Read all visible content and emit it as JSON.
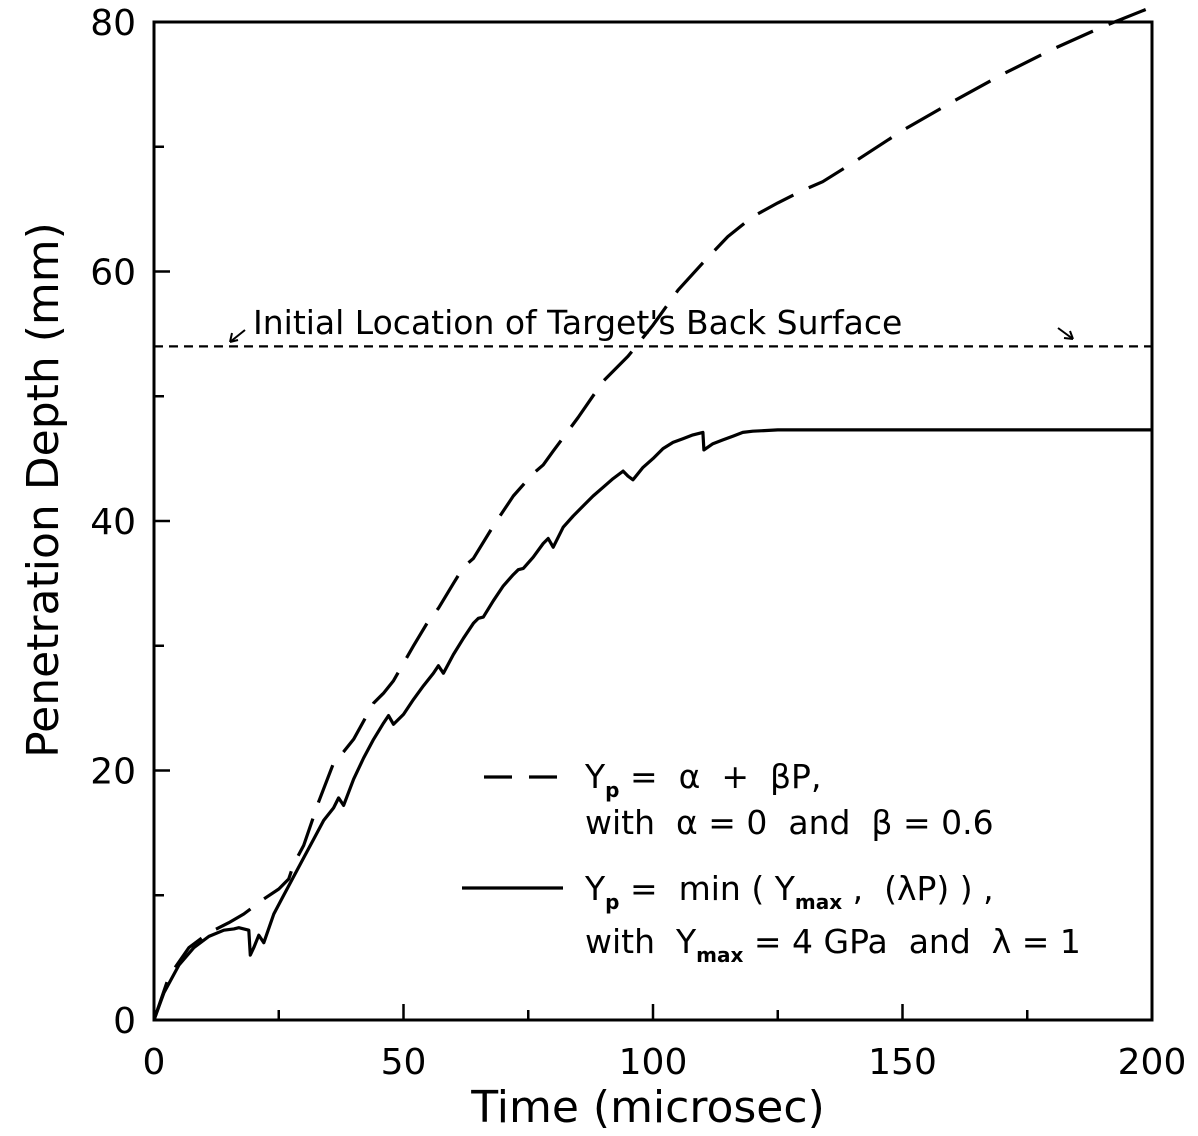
{
  "chart_data": {
    "type": "line",
    "xlabel": "Time (microsec)",
    "ylabel": "Penetration Depth (mm)",
    "xlim": [
      0,
      200
    ],
    "ylim": [
      0,
      80
    ],
    "xticks": [
      0,
      50,
      100,
      150,
      200
    ],
    "yticks": [
      0,
      20,
      40,
      60,
      80
    ],
    "x_minor_step": 25,
    "y_minor_step": 10,
    "grid": false,
    "series": [
      {
        "name": "Y_p = α + βP, with α = 0 and β = 0.6",
        "style": "dashed",
        "x": [
          0,
          3,
          7,
          11,
          15,
          18,
          22,
          25,
          27,
          28,
          30,
          33,
          36,
          38,
          40,
          44,
          46,
          48,
          52,
          55,
          57,
          60,
          62,
          64,
          68,
          72,
          76,
          78,
          80,
          85,
          90,
          95,
          100,
          105,
          110,
          115,
          120,
          125,
          130,
          134,
          140,
          150,
          160,
          170,
          180,
          190,
          200
        ],
        "y": [
          0,
          3.5,
          5.8,
          7,
          7.8,
          8.5,
          9.7,
          10.5,
          11.3,
          12.5,
          14,
          17.5,
          20.6,
          21.5,
          22.5,
          25.4,
          26.2,
          27.2,
          30,
          32,
          33,
          35,
          36.3,
          37,
          39.6,
          42,
          43.8,
          44.5,
          45.6,
          48.3,
          51.2,
          53.2,
          55.7,
          58.5,
          60.7,
          62.8,
          64.4,
          65.5,
          66.5,
          67.2,
          68.7,
          71.3,
          73.6,
          75.8,
          77.8,
          79.6,
          81.2
        ]
      },
      {
        "name": "Y_p = min(Y_max, (λP)), with Y_max = 4 GPa and λ = 1",
        "style": "solid",
        "x": [
          0,
          2,
          5,
          8,
          11,
          14,
          16,
          17,
          19,
          19.3,
          20,
          21,
          22,
          24,
          26,
          28,
          30,
          32,
          34,
          36,
          37,
          38,
          40,
          42,
          44,
          46,
          47,
          48,
          50,
          52,
          54,
          56,
          57,
          58,
          60,
          62,
          64,
          65,
          66,
          68,
          70,
          72,
          73,
          74,
          76,
          78,
          79,
          80,
          82,
          84,
          86,
          88,
          90,
          92,
          94,
          95,
          96,
          98,
          100,
          102,
          104,
          106,
          108,
          110,
          110.2,
          112,
          114,
          116,
          118,
          120,
          125,
          130,
          140,
          150,
          160,
          170,
          180,
          190,
          200
        ],
        "y": [
          0,
          2.2,
          4.4,
          5.8,
          6.7,
          7.2,
          7.3,
          7.4,
          7.2,
          5.2,
          5.8,
          6.8,
          6.2,
          8.5,
          10,
          11.5,
          13,
          14.5,
          16,
          17,
          17.8,
          17.2,
          19.3,
          21,
          22.5,
          23.8,
          24.4,
          23.7,
          24.5,
          25.7,
          26.8,
          27.8,
          28.4,
          27.8,
          29.3,
          30.6,
          31.8,
          32.2,
          32.3,
          33.6,
          34.8,
          35.7,
          36.1,
          36.2,
          37.1,
          38.2,
          38.6,
          37.9,
          39.5,
          40.4,
          41.2,
          42,
          42.7,
          43.4,
          44,
          43.6,
          43.3,
          44.3,
          45,
          45.8,
          46.3,
          46.6,
          46.9,
          47.1,
          45.7,
          46.2,
          46.5,
          46.8,
          47.1,
          47.2,
          47.3,
          47.3,
          47.3,
          47.3,
          47.3,
          47.3,
          47.3,
          47.3,
          47.3
        ]
      }
    ],
    "reference_line": {
      "y": 54,
      "label": "Initial Location of Target's Back Surface",
      "style": "short-dashed"
    }
  },
  "legend": {
    "dashed_line1": [
      "Y",
      "p",
      " =  α  +  βP,"
    ],
    "dashed_line2": "with  α = 0  and  β = 0.6",
    "solid_line1": [
      "Y",
      "p",
      " =  min ( Y",
      "max",
      " ,  (λP) ) ,"
    ],
    "solid_line2": [
      "with  Y",
      "max",
      " = 4 GPa  and  λ = 1"
    ]
  }
}
